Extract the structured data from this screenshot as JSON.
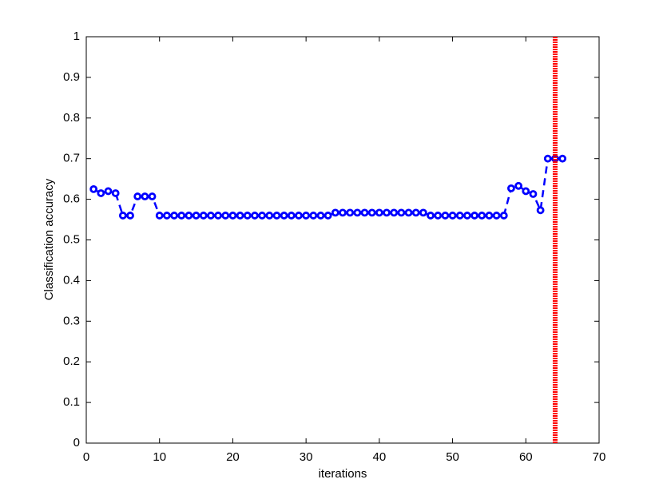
{
  "chart_data": {
    "type": "line",
    "x_label": "iterations",
    "y_label": "Classification accuracy",
    "xlim": [
      0,
      70
    ],
    "ylim": [
      0,
      1
    ],
    "xticks": [
      0,
      10,
      20,
      30,
      40,
      50,
      60,
      70
    ],
    "yticks": [
      0,
      0.1,
      0.2,
      0.3,
      0.4,
      0.5,
      0.6,
      0.7,
      0.8,
      0.9,
      1
    ],
    "series": [
      {
        "color": "#0000ff",
        "x": [
          1,
          2,
          3,
          4,
          5,
          6,
          7,
          8,
          9,
          10,
          11,
          12,
          13,
          14,
          15,
          16,
          17,
          18,
          19,
          20,
          21,
          22,
          23,
          24,
          25,
          26,
          27,
          28,
          29,
          30,
          31,
          32,
          33,
          34,
          35,
          36,
          37,
          38,
          39,
          40,
          41,
          42,
          43,
          44,
          45,
          46,
          47,
          48,
          49,
          50,
          51,
          52,
          53,
          54,
          55,
          56,
          57,
          58,
          59,
          60,
          61,
          62,
          63,
          64,
          65
        ],
        "values": [
          0.625,
          0.615,
          0.62,
          0.615,
          0.56,
          0.56,
          0.607,
          0.607,
          0.607,
          0.56,
          0.56,
          0.56,
          0.56,
          0.56,
          0.56,
          0.56,
          0.56,
          0.56,
          0.56,
          0.56,
          0.56,
          0.56,
          0.56,
          0.56,
          0.56,
          0.56,
          0.56,
          0.56,
          0.56,
          0.56,
          0.56,
          0.56,
          0.56,
          0.567,
          0.567,
          0.567,
          0.567,
          0.567,
          0.567,
          0.567,
          0.567,
          0.567,
          0.567,
          0.567,
          0.567,
          0.567,
          0.56,
          0.56,
          0.56,
          0.56,
          0.56,
          0.56,
          0.56,
          0.56,
          0.56,
          0.56,
          0.56,
          0.627,
          0.633,
          0.62,
          0.613,
          0.573,
          0.7,
          0.7,
          0.7
        ]
      },
      {
        "color": "#ff0000",
        "x": [
          64,
          64
        ],
        "values": [
          0,
          1
        ]
      }
    ]
  }
}
